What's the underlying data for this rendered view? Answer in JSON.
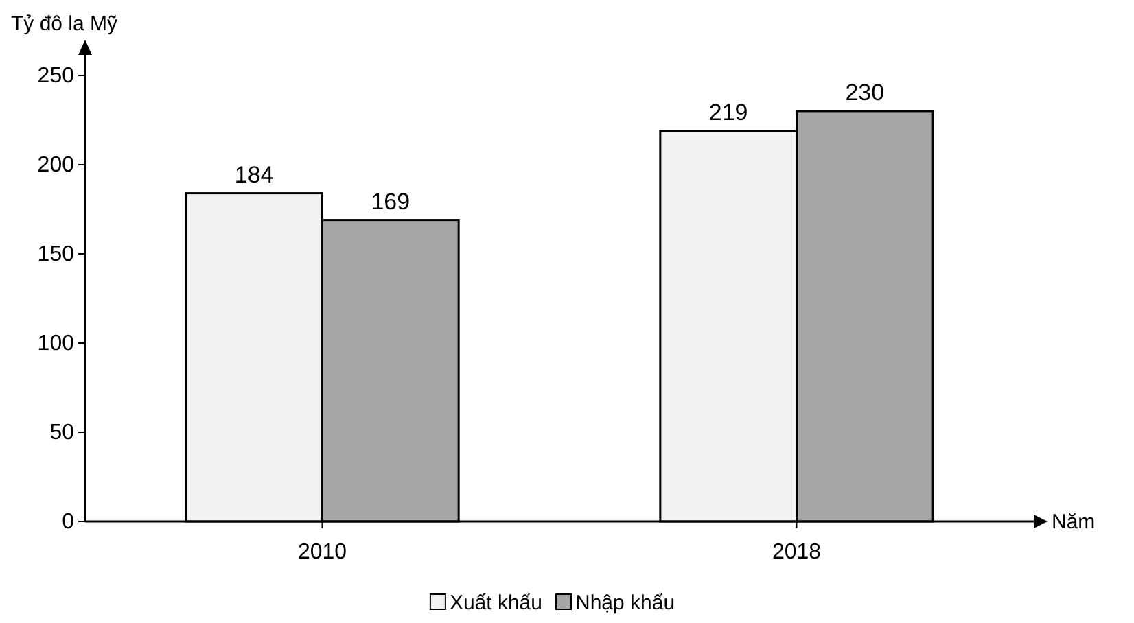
{
  "chart_data": {
    "type": "bar",
    "ylabel": "Tỷ đô la Mỹ",
    "xlabel": "Năm",
    "categories": [
      "2010",
      "2018"
    ],
    "series": [
      {
        "name": "Xuất khẩu",
        "color": "#f2f2f2",
        "values": [
          184,
          219
        ]
      },
      {
        "name": "Nhập khẩu",
        "color": "#a6a6a6",
        "values": [
          169,
          230
        ]
      }
    ],
    "ylim": [
      0,
      250
    ],
    "yticks": [
      0,
      50,
      100,
      150,
      200,
      250
    ],
    "grid": false,
    "legend": "bottom",
    "data_labels": true
  }
}
